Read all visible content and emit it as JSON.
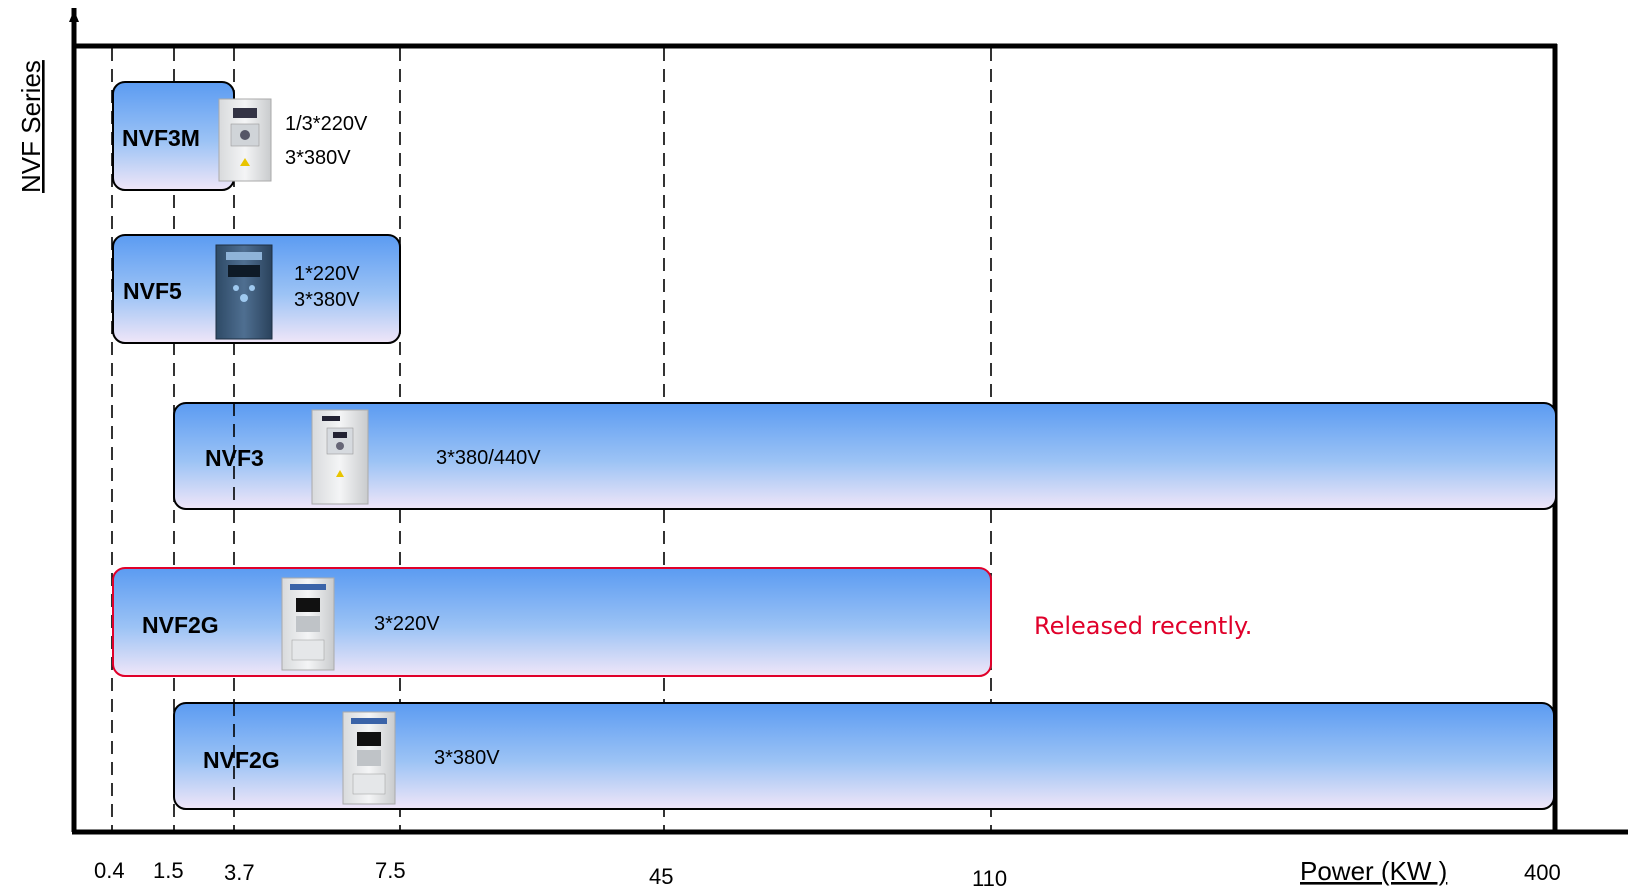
{
  "axes": {
    "y_label": "NVF Series",
    "x_label": "Power (KW )",
    "ticks": [
      "0.4",
      "1.5",
      "3.7",
      "7.5",
      "45",
      "110",
      "400"
    ]
  },
  "series": [
    {
      "name": "NVF3M",
      "from": "0.4",
      "to": "3.7",
      "voltages": [
        "1/3*220V",
        "3*380V"
      ],
      "border": "#000000"
    },
    {
      "name": "NVF5",
      "from": "0.4",
      "to": "7.5",
      "voltages": [
        "1*220V",
        "3*380V"
      ],
      "border": "#000000"
    },
    {
      "name": "NVF3",
      "from": "1.5",
      "to": "400",
      "voltages": [
        "3*380/440V"
      ],
      "border": "#000000"
    },
    {
      "name": "NVF2G",
      "from": "0.4",
      "to": "110",
      "voltages": [
        "3*220V"
      ],
      "border": "#e0002a",
      "note": "Released recently."
    },
    {
      "name": "NVF2G",
      "from": "1.5",
      "to": "400",
      "voltages": [
        "3*380V"
      ],
      "border": "#000000"
    }
  ],
  "colors": {
    "bar_top": "#5b9bf2",
    "bar_bottom": "#f0e6f8",
    "highlight": "#e0002a",
    "axis": "#000000"
  },
  "icons": [
    "inverter-device-icon"
  ]
}
